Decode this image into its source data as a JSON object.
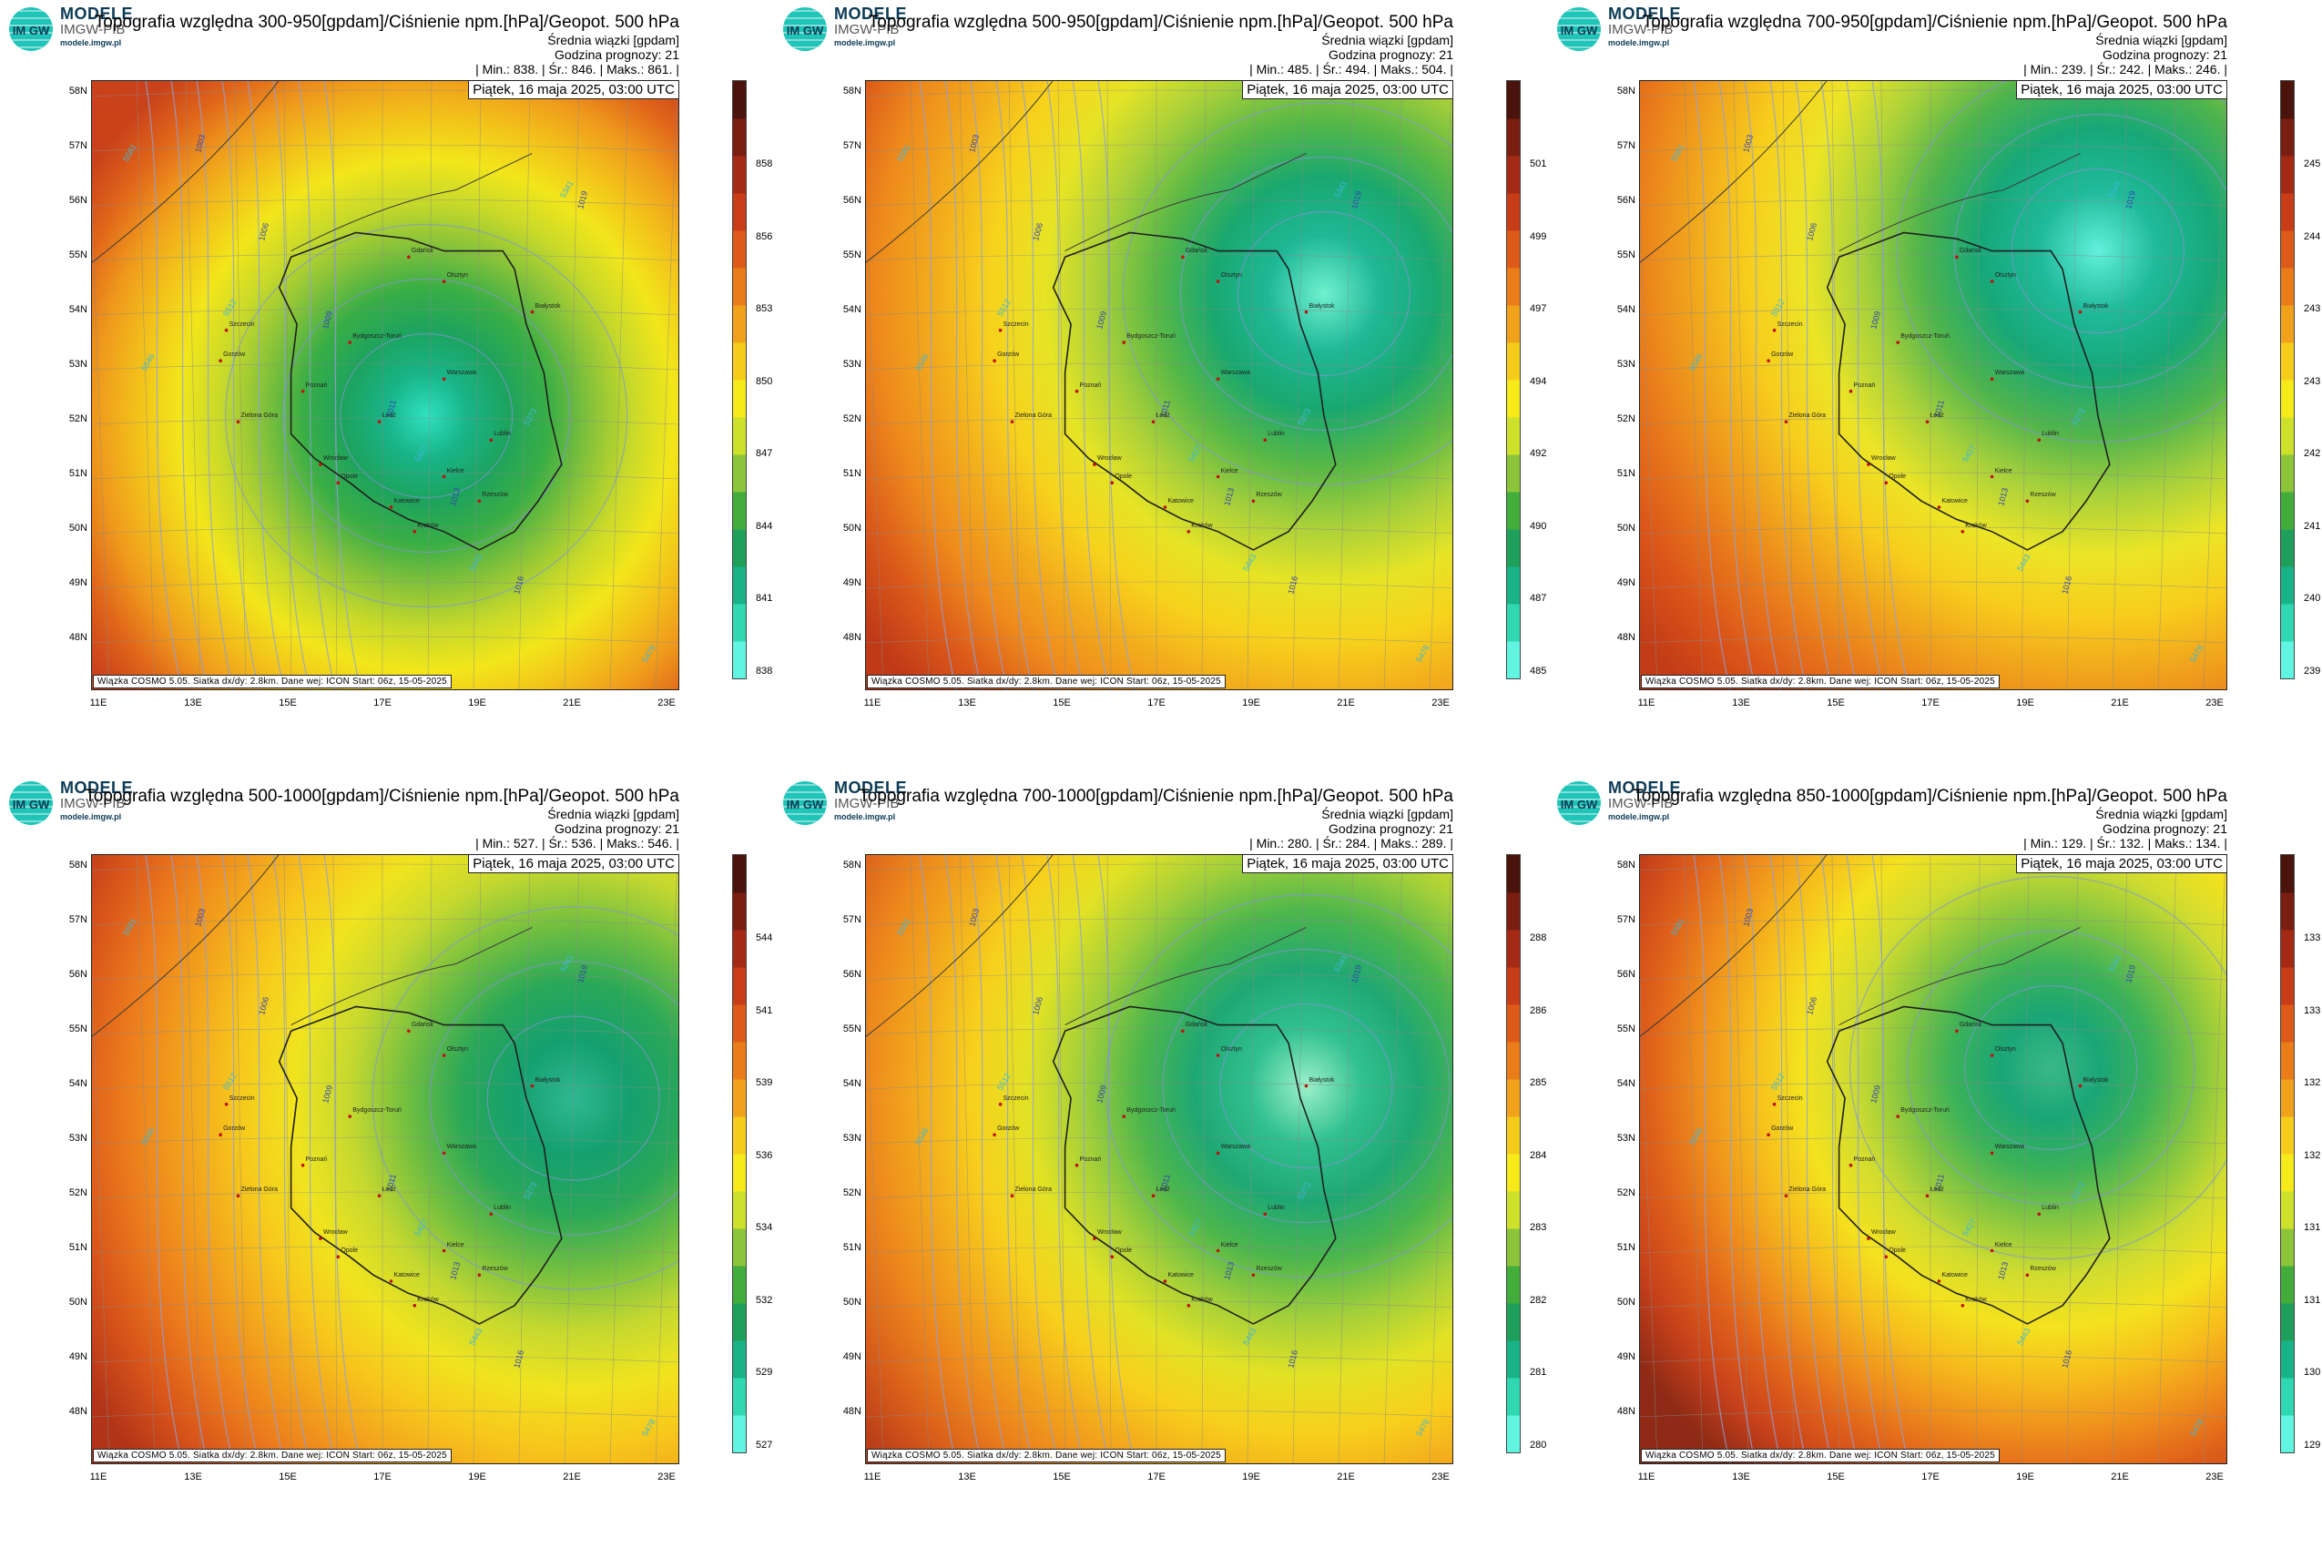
{
  "common": {
    "logo_brand": "MODELE",
    "logo_sub": "IMGW-PIB",
    "logo_site": "modele.imgw.pl",
    "logo_letters": "IM GW",
    "ensemble_label": "Średnia wiązki [gpdam]",
    "forecast_hour": "Godzina prognozy: 21",
    "date": "Piątek, 16 maja 2025, 03:00 UTC",
    "footer": "Wiązka COSMO 5.05. Siatka dx/dy: 2.8km. Dane wej: ICON Start: 06z, 15-05-2025",
    "lat_labels": [
      "58N",
      "57N",
      "56N",
      "55N",
      "54N",
      "53N",
      "52N",
      "51N",
      "50N",
      "49N",
      "48N"
    ],
    "lon_labels": [
      "11E",
      "13E",
      "15E",
      "17E",
      "19E",
      "21E",
      "23E"
    ],
    "cities": [
      "Gdańsk",
      "Olsztyn",
      "Białystok",
      "Szczecin",
      "Bydgoszcz-Toruń",
      "Gorzów",
      "Poznań",
      "Warszawa",
      "Zielona Góra",
      "Łódź",
      "Lublin",
      "Wrocław",
      "Kielce",
      "Opole",
      "Katowice",
      "Rzeszów",
      "Kraków"
    ],
    "isobar_labels": [
      "1003",
      "1006",
      "1009",
      "1011",
      "1013",
      "1016",
      "1019"
    ],
    "geopot_labels": [
      "5341",
      "5373",
      "5427",
      "5443",
      "5478",
      "5512",
      "5546",
      "5581"
    ]
  },
  "panels": [
    {
      "title": "Topografia względna 300-950[gpdam]/Ciśnienie npm.[hPa]/Geopot. 500 hPa",
      "stats": "| Min.:   838. | Śr.:   846. | Maks.:   861. |",
      "cbar": [
        "858",
        "856",
        "853",
        "850",
        "847",
        "844",
        "841",
        "838"
      ],
      "variant": "a"
    },
    {
      "title": "Topografia względna 500-950[gpdam]/Ciśnienie npm.[hPa]/Geopot. 500 hPa",
      "stats": "| Min.:   485. | Śr.:   494. | Maks.:   504. |",
      "cbar": [
        "501",
        "499",
        "497",
        "494",
        "492",
        "490",
        "487",
        "485"
      ],
      "variant": "b"
    },
    {
      "title": "Topografia względna 700-950[gpdam]/Ciśnienie npm.[hPa]/Geopot. 500 hPa",
      "stats": "| Min.:   239. | Śr.:   242. | Maks.:   246. |",
      "cbar": [
        "245",
        "244",
        "243",
        "243",
        "242",
        "241",
        "240",
        "239"
      ],
      "variant": "c"
    },
    {
      "title": "Topografia względna 500-1000[gpdam]/Ciśnienie npm.[hPa]/Geopot. 500 hPa",
      "stats": "| Min.:   527. | Śr.:   536. | Maks.:   546. |",
      "cbar": [
        "544",
        "541",
        "539",
        "536",
        "534",
        "532",
        "529",
        "527"
      ],
      "variant": "d"
    },
    {
      "title": "Topografia względna 700-1000[gpdam]/Ciśnienie npm.[hPa]/Geopot. 500 hPa",
      "stats": "| Min.:   280. | Śr.:   284. | Maks.:   289. |",
      "cbar": [
        "288",
        "286",
        "285",
        "284",
        "283",
        "282",
        "281",
        "280"
      ],
      "variant": "e"
    },
    {
      "title": "Topografia względna 850-1000[gpdam]/Ciśnienie npm.[hPa]/Geopot. 500 hPa",
      "stats": "| Min.:   129. | Śr.:   132. | Maks.:   134. |",
      "cbar": [
        "133",
        "133",
        "132",
        "132",
        "131",
        "131",
        "130",
        "129"
      ],
      "variant": "f"
    }
  ]
}
